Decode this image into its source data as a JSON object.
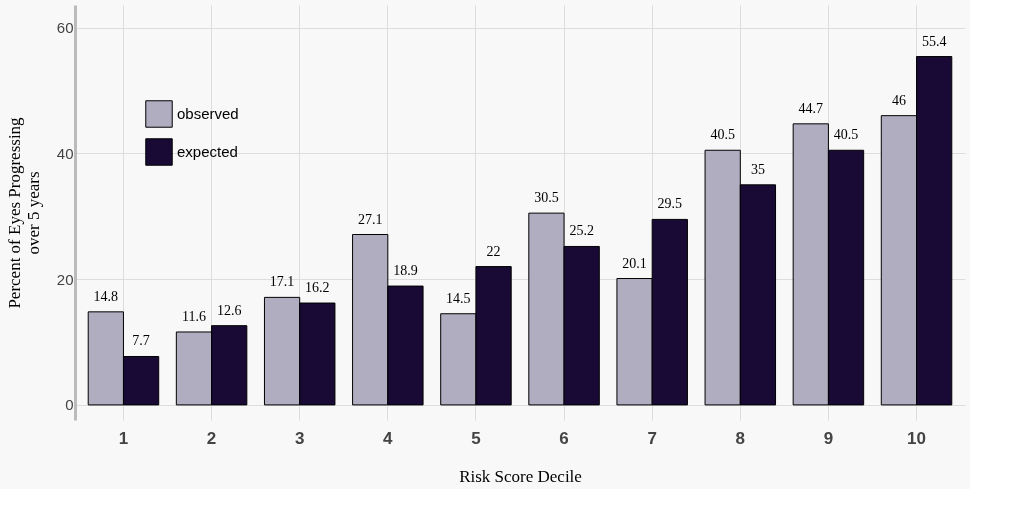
{
  "chart_data": {
    "type": "bar",
    "xlabel": "Risk Score Decile",
    "ylabel": "Percent of Eyes Progressing over 5 years",
    "categories": [
      "1",
      "2",
      "3",
      "4",
      "5",
      "6",
      "7",
      "8",
      "9",
      "10"
    ],
    "series": [
      {
        "name": "observed",
        "color": "#b1adc1",
        "values": [
          14.8,
          11.6,
          17.1,
          27.1,
          14.5,
          30.5,
          20.1,
          40.5,
          44.7,
          46
        ]
      },
      {
        "name": "expected",
        "color": "#180a35",
        "values": [
          7.7,
          12.6,
          16.2,
          18.9,
          22,
          25.2,
          29.5,
          35,
          40.5,
          55.4
        ]
      }
    ],
    "ylim": [
      -2.4,
      63.6
    ],
    "yticks": [
      0,
      20,
      40,
      60
    ],
    "grid": true,
    "legend": "top left",
    "data_labels": true
  }
}
